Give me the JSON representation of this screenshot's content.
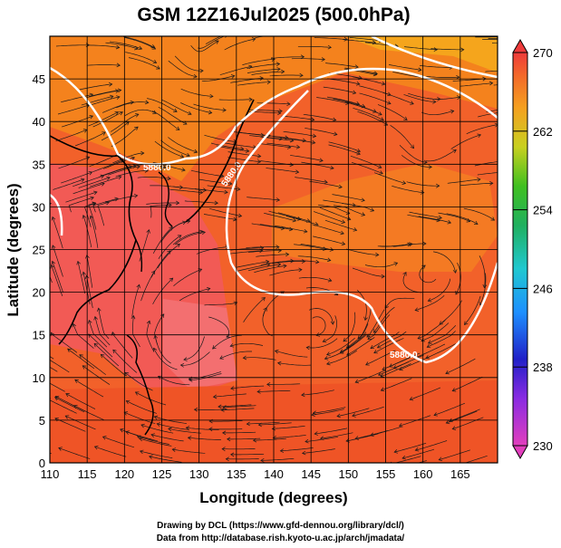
{
  "title": "GSM 12Z16Jul2025 (500.0hPa)",
  "xlabel": "Longitude (degrees)",
  "ylabel": "Latitude  (degrees)",
  "x_ticks": [
    "110",
    "115",
    "120",
    "125",
    "130",
    "135",
    "140",
    "145",
    "150",
    "155",
    "160",
    "165"
  ],
  "y_ticks": [
    "0",
    "5",
    "10",
    "15",
    "20",
    "25",
    "30",
    "35",
    "40",
    "45"
  ],
  "colorbar": {
    "ticks": [
      "230",
      "238",
      "246",
      "254",
      "262",
      "270"
    ],
    "min": 230,
    "max": 270
  },
  "contour_labels": [
    "5880.0",
    "5880.0",
    "5880.0"
  ],
  "credits": {
    "line1": "Drawing by DCL (https://www.gfd-dennou.org/library/dcl/)",
    "line2": "Data from http://database.rish.kyoto-u.ac.jp/arch/jmadata/"
  },
  "colors": {
    "warm_red": "#ee3b30",
    "orange": "#f36a1e",
    "pink_red": "#f25757",
    "yellow": "#f6a21c"
  },
  "chart_data": {
    "type": "heatmap",
    "title": "GSM 12Z16Jul2025 (500.0hPa)",
    "xlabel": "Longitude (degrees)",
    "ylabel": "Latitude  (degrees)",
    "xlim": [
      110,
      170
    ],
    "ylim": [
      0,
      50
    ],
    "colorbar_range": [
      230,
      270
    ],
    "contour_level": 5880.0,
    "overlay": "streamlines"
  }
}
